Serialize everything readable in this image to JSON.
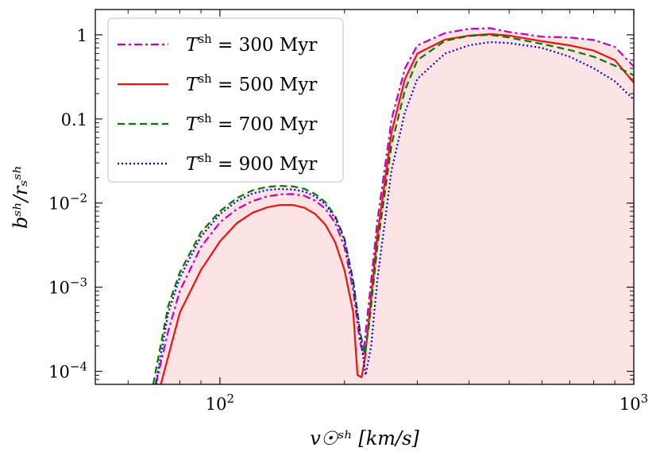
{
  "chart_data": {
    "type": "line",
    "title": "",
    "xlabel": "v☉ˢʰ [km/s]",
    "ylabel": "bˢʰ/rₛˢʰ",
    "xscale": "log",
    "yscale": "log",
    "xlim": [
      50,
      1000
    ],
    "ylim": [
      7e-05,
      2
    ],
    "grid": false,
    "legend_position": "top-left",
    "x_ticks": [
      {
        "value": 100,
        "base": "10",
        "exp": "2"
      },
      {
        "value": 1000,
        "base": "10",
        "exp": "3"
      }
    ],
    "y_ticks": [
      {
        "value": 1,
        "label": "1"
      },
      {
        "value": 0.1,
        "label": "0.1"
      },
      {
        "value": 0.01,
        "base": "10",
        "exp": "−2"
      },
      {
        "value": 0.001,
        "base": "10",
        "exp": "−3"
      },
      {
        "value": 0.0001,
        "base": "10",
        "exp": "−4"
      }
    ],
    "fill_color": "#fde4e4",
    "series": [
      {
        "name": "T^sh = 300 Myr",
        "legend_var": "T",
        "legend_sup": "sh",
        "legend_rest": " = 300 Myr",
        "color": "#bf00bf",
        "dash": "10,4,3,4",
        "x": [
          70,
          75,
          80,
          90,
          100,
          110,
          120,
          130,
          140,
          150,
          160,
          170,
          180,
          190,
          200,
          210,
          218,
          222,
          230,
          240,
          260,
          280,
          300,
          350,
          400,
          450,
          500,
          600,
          700,
          800,
          900,
          1000
        ],
        "y": [
          7e-05,
          0.0003,
          0.0009,
          0.003,
          0.0059,
          0.0085,
          0.0106,
          0.012,
          0.0127,
          0.0128,
          0.0122,
          0.0107,
          0.0085,
          0.0058,
          0.003,
          0.0009,
          0.00022,
          0.00016,
          0.0008,
          0.006,
          0.1,
          0.4,
          0.75,
          1.05,
          1.18,
          1.2,
          1.08,
          0.95,
          0.93,
          0.87,
          0.72,
          0.42
        ]
      },
      {
        "name": "T^sh = 500 Myr",
        "legend_var": "T",
        "legend_sup": "sh",
        "legend_rest": " = 500 Myr",
        "color": "#ee1111",
        "dash": "",
        "x": [
          72,
          75,
          80,
          90,
          100,
          110,
          120,
          130,
          140,
          150,
          160,
          170,
          180,
          190,
          200,
          210,
          215,
          220,
          224,
          230,
          240,
          260,
          280,
          300,
          350,
          400,
          450,
          500,
          600,
          700,
          800,
          900,
          1000
        ],
        "y": [
          7e-05,
          0.00015,
          0.0005,
          0.0016,
          0.0035,
          0.0058,
          0.0077,
          0.0089,
          0.0095,
          0.0095,
          0.0088,
          0.0074,
          0.0055,
          0.0034,
          0.0016,
          0.0005,
          9e-05,
          8.5e-05,
          0.00014,
          0.0005,
          0.004,
          0.07,
          0.3,
          0.6,
          0.88,
          0.98,
          1.02,
          0.98,
          0.84,
          0.75,
          0.65,
          0.5,
          0.27
        ]
      },
      {
        "name": "T^sh = 700 Myr",
        "legend_var": "T",
        "legend_sup": "sh",
        "legend_rest": " = 700 Myr",
        "color": "#007a00",
        "dash": "9,5",
        "x": [
          69,
          75,
          80,
          90,
          100,
          110,
          120,
          130,
          140,
          150,
          160,
          170,
          180,
          190,
          200,
          210,
          218,
          224,
          230,
          240,
          260,
          280,
          300,
          350,
          400,
          450,
          500,
          600,
          700,
          800,
          900,
          1000
        ],
        "y": [
          7e-05,
          0.0006,
          0.0015,
          0.0045,
          0.008,
          0.0115,
          0.0142,
          0.0156,
          0.016,
          0.0158,
          0.0148,
          0.0128,
          0.0102,
          0.007,
          0.0038,
          0.0012,
          0.0003,
          0.00016,
          0.0004,
          0.003,
          0.05,
          0.22,
          0.5,
          0.85,
          0.97,
          1.0,
          0.93,
          0.78,
          0.66,
          0.55,
          0.43,
          0.33
        ]
      },
      {
        "name": "T^sh = 900 Myr",
        "legend_var": "T",
        "legend_sup": "sh",
        "legend_rest": " = 900 Myr",
        "color": "#0000ee",
        "dash": "2,3",
        "x": [
          70,
          75,
          80,
          90,
          100,
          110,
          120,
          130,
          140,
          150,
          160,
          170,
          180,
          190,
          200,
          210,
          218,
          225,
          232,
          240,
          260,
          280,
          300,
          350,
          400,
          450,
          500,
          600,
          700,
          800,
          900,
          1000
        ],
        "y": [
          7e-05,
          0.0005,
          0.0013,
          0.004,
          0.0074,
          0.0106,
          0.013,
          0.0143,
          0.0147,
          0.0145,
          0.0137,
          0.012,
          0.0096,
          0.0066,
          0.0036,
          0.0011,
          0.00028,
          9e-05,
          0.0002,
          0.0012,
          0.025,
          0.12,
          0.3,
          0.6,
          0.75,
          0.82,
          0.8,
          0.7,
          0.55,
          0.4,
          0.28,
          0.17
        ]
      }
    ]
  }
}
